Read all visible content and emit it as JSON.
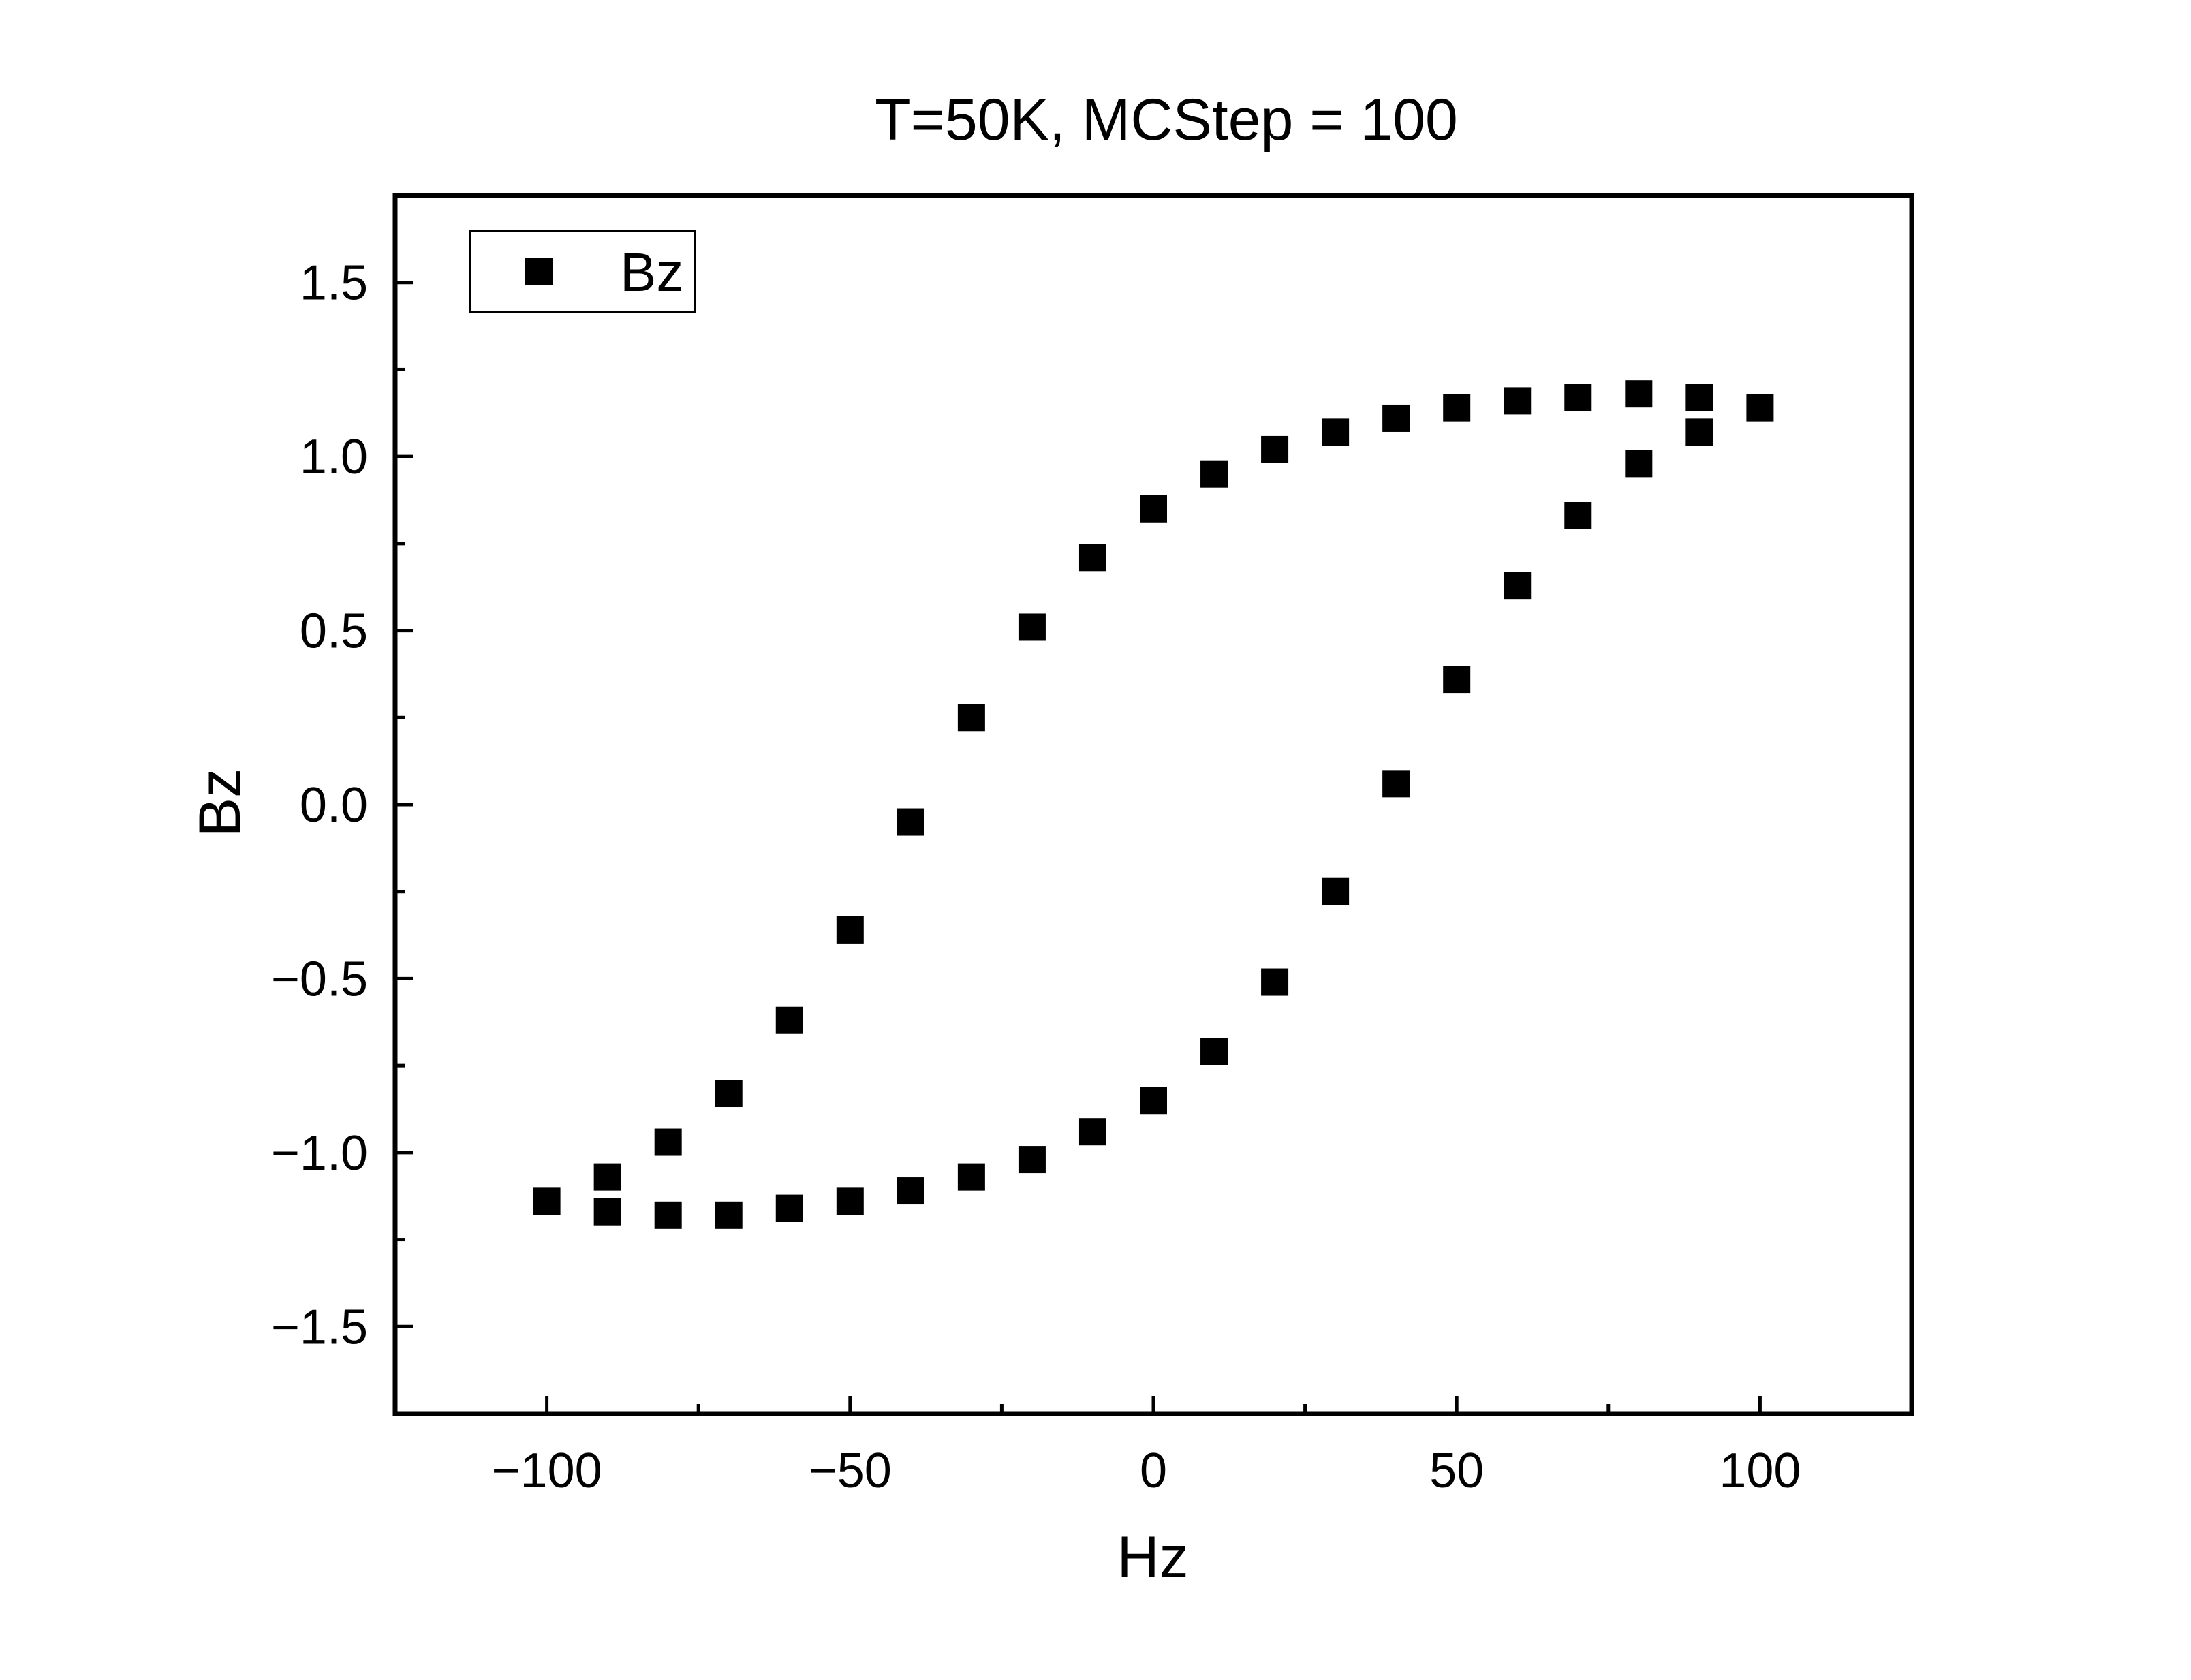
{
  "chart_data": {
    "type": "scatter",
    "title": "T=50K, MCStep = 100",
    "xlabel": "Hz",
    "ylabel": "Bz",
    "xlim": [
      -125,
      125
    ],
    "ylim": [
      -1.75,
      1.75
    ],
    "xticks": [
      -100,
      -50,
      0,
      50,
      100
    ],
    "xtick_labels": [
      "−100",
      "−50",
      "0",
      "50",
      "100"
    ],
    "yticks": [
      -1.5,
      -1.0,
      -0.5,
      0.0,
      0.5,
      1.0,
      1.5
    ],
    "ytick_labels": [
      "−1.5",
      "−1.0",
      "−0.5",
      "0.0",
      "0.5",
      "1.0",
      "1.5"
    ],
    "grid": false,
    "legend": {
      "position": "top-left",
      "entries": [
        "Bz"
      ]
    },
    "marker": "square",
    "color": "#000000",
    "series": [
      {
        "name": "Bz",
        "x": [
          -100,
          -90,
          -80,
          -70,
          -60,
          -50,
          -40,
          -30,
          -20,
          -10,
          0,
          10,
          20,
          30,
          40,
          50,
          60,
          70,
          80,
          90,
          100,
          90,
          80,
          70,
          60,
          50,
          40,
          30,
          20,
          10,
          0,
          -10,
          -20,
          -30,
          -40,
          -50,
          -60,
          -70,
          -80,
          -90
        ],
        "y": [
          -1.14,
          -1.17,
          -1.18,
          -1.18,
          -1.16,
          -1.14,
          -1.11,
          -1.07,
          -1.02,
          -0.94,
          -0.85,
          -0.71,
          -0.51,
          -0.25,
          0.06,
          0.36,
          0.63,
          0.83,
          0.98,
          1.07,
          1.14,
          1.17,
          1.18,
          1.17,
          1.16,
          1.14,
          1.11,
          1.07,
          1.02,
          0.95,
          0.85,
          0.71,
          0.51,
          0.25,
          -0.05,
          -0.36,
          -0.62,
          -0.83,
          -0.97,
          -1.07
        ]
      }
    ]
  }
}
